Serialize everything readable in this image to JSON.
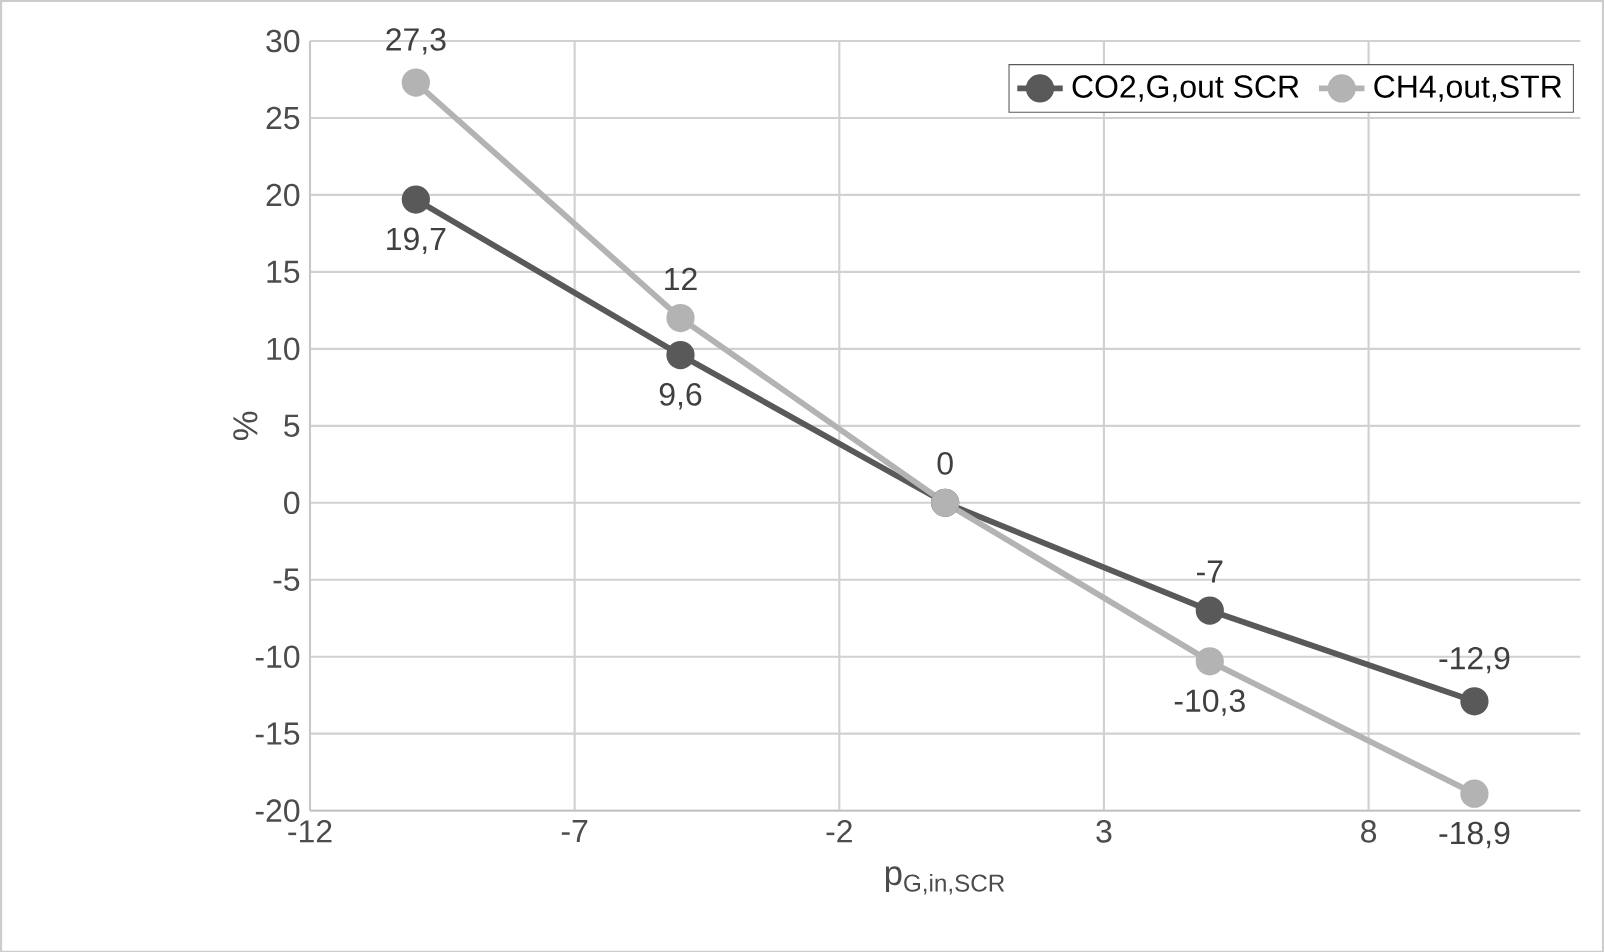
{
  "chart_data": {
    "type": "line",
    "xlabel": "p$_{G,in,SCR}$",
    "ylabel": "%",
    "x": [
      -10,
      -5,
      0,
      5,
      10
    ],
    "series": [
      {
        "name": "CO2,G,out SCR",
        "color": "#595959",
        "values": [
          19.7,
          9.6,
          0,
          -7,
          -12.9
        ],
        "value_labels": [
          "19,7",
          "9,6",
          null,
          "-7",
          "-12,9"
        ]
      },
      {
        "name": "CH4,out,STR",
        "color": "#b3b3b3",
        "values": [
          27.3,
          12,
          0,
          -10.3,
          -18.9
        ],
        "value_labels": [
          "27,3",
          "12",
          "0",
          "-10,3",
          "-18,9"
        ]
      }
    ],
    "xlim": [
      -12,
      12
    ],
    "xticks": [
      -12,
      -7,
      -2,
      3,
      8
    ],
    "ylim": [
      -20,
      30
    ],
    "yticks": [
      -20,
      -15,
      -10,
      -5,
      0,
      5,
      10,
      15,
      20,
      25,
      30
    ],
    "grid": true,
    "legend": "top right",
    "marker": "circle",
    "line_style": "solid"
  }
}
